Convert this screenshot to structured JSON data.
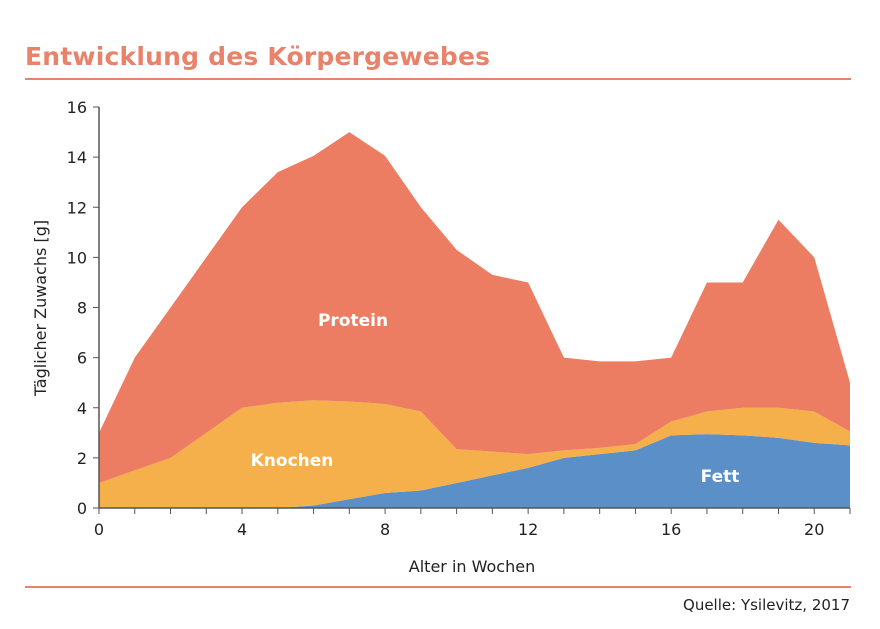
{
  "title": "Entwicklung des Körpergewebes",
  "source": "Quelle: Ysilevitz, 2017",
  "chart_data": {
    "type": "area",
    "stacked": true,
    "title": "Entwicklung des Körpergewebes",
    "xlabel": "Alter in Wochen",
    "ylabel": "Täglicher Zuwachs [g]",
    "xlim": [
      0,
      21
    ],
    "ylim": [
      0,
      16
    ],
    "x_ticks": [
      0,
      4,
      8,
      12,
      16,
      20
    ],
    "y_ticks": [
      0,
      2,
      4,
      6,
      8,
      10,
      12,
      14,
      16
    ],
    "grid": false,
    "legend": "none (labels inside areas)",
    "x": [
      0,
      1,
      2,
      3,
      4,
      5,
      6,
      7,
      8,
      9,
      10,
      11,
      12,
      13,
      14,
      15,
      16,
      17,
      18,
      19,
      20,
      21
    ],
    "series": [
      {
        "name": "Fett",
        "color": "#5b8fc7",
        "values": [
          0,
          0,
          0,
          0,
          0,
          0,
          0.1,
          0.35,
          0.6,
          0.7,
          1.0,
          1.3,
          1.6,
          2.0,
          2.15,
          2.3,
          2.9,
          2.95,
          2.9,
          2.8,
          2.6,
          2.5
        ]
      },
      {
        "name": "Knochen",
        "color": "#f5b04b",
        "values": [
          1,
          1.5,
          2,
          3,
          4,
          4.2,
          4.2,
          3.9,
          3.55,
          3.15,
          1.35,
          0.95,
          0.55,
          0.3,
          0.25,
          0.25,
          0.55,
          0.9,
          1.1,
          1.2,
          1.25,
          0.55
        ]
      },
      {
        "name": "Protein",
        "color": "#ec7c62",
        "values": [
          2,
          4.5,
          6,
          7,
          8,
          9.2,
          9.75,
          10.75,
          9.9,
          8.15,
          7.95,
          7.05,
          6.85,
          3.7,
          3.45,
          3.3,
          2.55,
          5.15,
          5,
          7.5,
          6.15,
          1.95
        ]
      }
    ]
  }
}
